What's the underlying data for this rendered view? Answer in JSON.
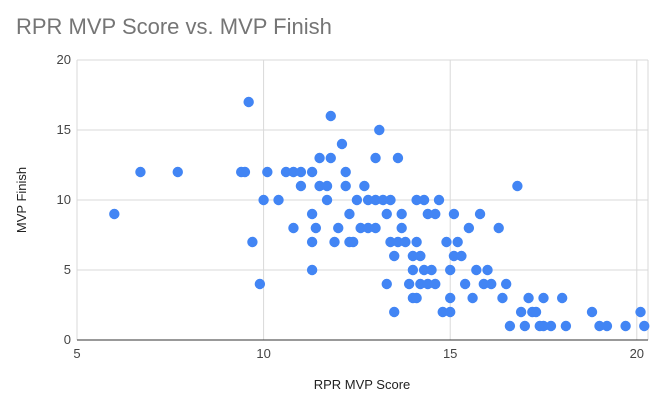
{
  "chart_data": {
    "type": "scatter",
    "title": "RPR MVP Score vs. MVP Finish",
    "xlabel": "RPR MVP Score",
    "ylabel": "MVP Finish",
    "xlim": [
      5,
      20.3
    ],
    "ylim": [
      0,
      20
    ],
    "xticks": [
      5,
      10,
      15,
      20
    ],
    "yticks": [
      0,
      5,
      10,
      15,
      20
    ],
    "grid": true,
    "legend": "none",
    "point_color": "#4285f4",
    "points": [
      [
        6.0,
        9
      ],
      [
        6.7,
        12
      ],
      [
        7.7,
        12
      ],
      [
        9.4,
        12
      ],
      [
        9.5,
        12
      ],
      [
        9.6,
        17
      ],
      [
        9.7,
        7
      ],
      [
        9.9,
        4
      ],
      [
        10.0,
        10
      ],
      [
        10.1,
        12
      ],
      [
        10.4,
        10
      ],
      [
        10.6,
        12
      ],
      [
        10.8,
        12
      ],
      [
        10.8,
        8
      ],
      [
        11.0,
        12
      ],
      [
        11.0,
        11
      ],
      [
        11.3,
        12
      ],
      [
        11.3,
        9
      ],
      [
        11.3,
        7
      ],
      [
        11.3,
        5
      ],
      [
        11.4,
        8
      ],
      [
        11.5,
        13
      ],
      [
        11.5,
        11
      ],
      [
        11.7,
        10
      ],
      [
        11.7,
        11
      ],
      [
        11.8,
        16
      ],
      [
        11.8,
        13
      ],
      [
        11.9,
        7
      ],
      [
        12.0,
        8
      ],
      [
        12.1,
        14
      ],
      [
        12.2,
        12
      ],
      [
        12.2,
        11
      ],
      [
        12.3,
        9
      ],
      [
        12.3,
        7
      ],
      [
        12.4,
        7
      ],
      [
        12.5,
        10
      ],
      [
        12.6,
        8
      ],
      [
        12.7,
        11
      ],
      [
        12.8,
        10
      ],
      [
        12.8,
        8
      ],
      [
        13.0,
        13
      ],
      [
        13.0,
        10
      ],
      [
        13.0,
        8
      ],
      [
        13.1,
        15
      ],
      [
        13.2,
        10
      ],
      [
        13.3,
        4
      ],
      [
        13.3,
        9
      ],
      [
        13.4,
        10
      ],
      [
        13.4,
        7
      ],
      [
        13.5,
        6
      ],
      [
        13.5,
        2
      ],
      [
        13.6,
        13
      ],
      [
        13.6,
        7
      ],
      [
        13.7,
        9
      ],
      [
        13.7,
        8
      ],
      [
        13.8,
        7
      ],
      [
        13.9,
        4
      ],
      [
        14.0,
        3
      ],
      [
        14.0,
        5
      ],
      [
        14.0,
        6
      ],
      [
        14.1,
        10
      ],
      [
        14.1,
        3
      ],
      [
        14.1,
        7
      ],
      [
        14.2,
        4
      ],
      [
        14.2,
        6
      ],
      [
        14.3,
        10
      ],
      [
        14.3,
        5
      ],
      [
        14.4,
        9
      ],
      [
        14.4,
        4
      ],
      [
        14.5,
        5
      ],
      [
        14.6,
        9
      ],
      [
        14.6,
        4
      ],
      [
        14.7,
        10
      ],
      [
        14.8,
        2
      ],
      [
        14.9,
        7
      ],
      [
        15.0,
        2
      ],
      [
        15.0,
        5
      ],
      [
        15.0,
        3
      ],
      [
        15.1,
        6
      ],
      [
        15.1,
        9
      ],
      [
        15.2,
        7
      ],
      [
        15.3,
        6
      ],
      [
        15.4,
        4
      ],
      [
        15.5,
        8
      ],
      [
        15.6,
        3
      ],
      [
        15.7,
        5
      ],
      [
        15.8,
        9
      ],
      [
        15.9,
        4
      ],
      [
        16.0,
        5
      ],
      [
        16.1,
        4
      ],
      [
        16.3,
        8
      ],
      [
        16.4,
        3
      ],
      [
        16.5,
        4
      ],
      [
        16.6,
        1
      ],
      [
        16.8,
        11
      ],
      [
        16.9,
        2
      ],
      [
        17.0,
        1
      ],
      [
        17.1,
        3
      ],
      [
        17.2,
        2
      ],
      [
        17.3,
        2
      ],
      [
        17.4,
        1
      ],
      [
        17.5,
        3
      ],
      [
        17.5,
        1
      ],
      [
        17.7,
        1
      ],
      [
        18.0,
        3
      ],
      [
        18.1,
        1
      ],
      [
        18.8,
        2
      ],
      [
        19.0,
        1
      ],
      [
        19.2,
        1
      ],
      [
        19.7,
        1
      ],
      [
        20.1,
        2
      ],
      [
        20.2,
        1
      ]
    ]
  }
}
